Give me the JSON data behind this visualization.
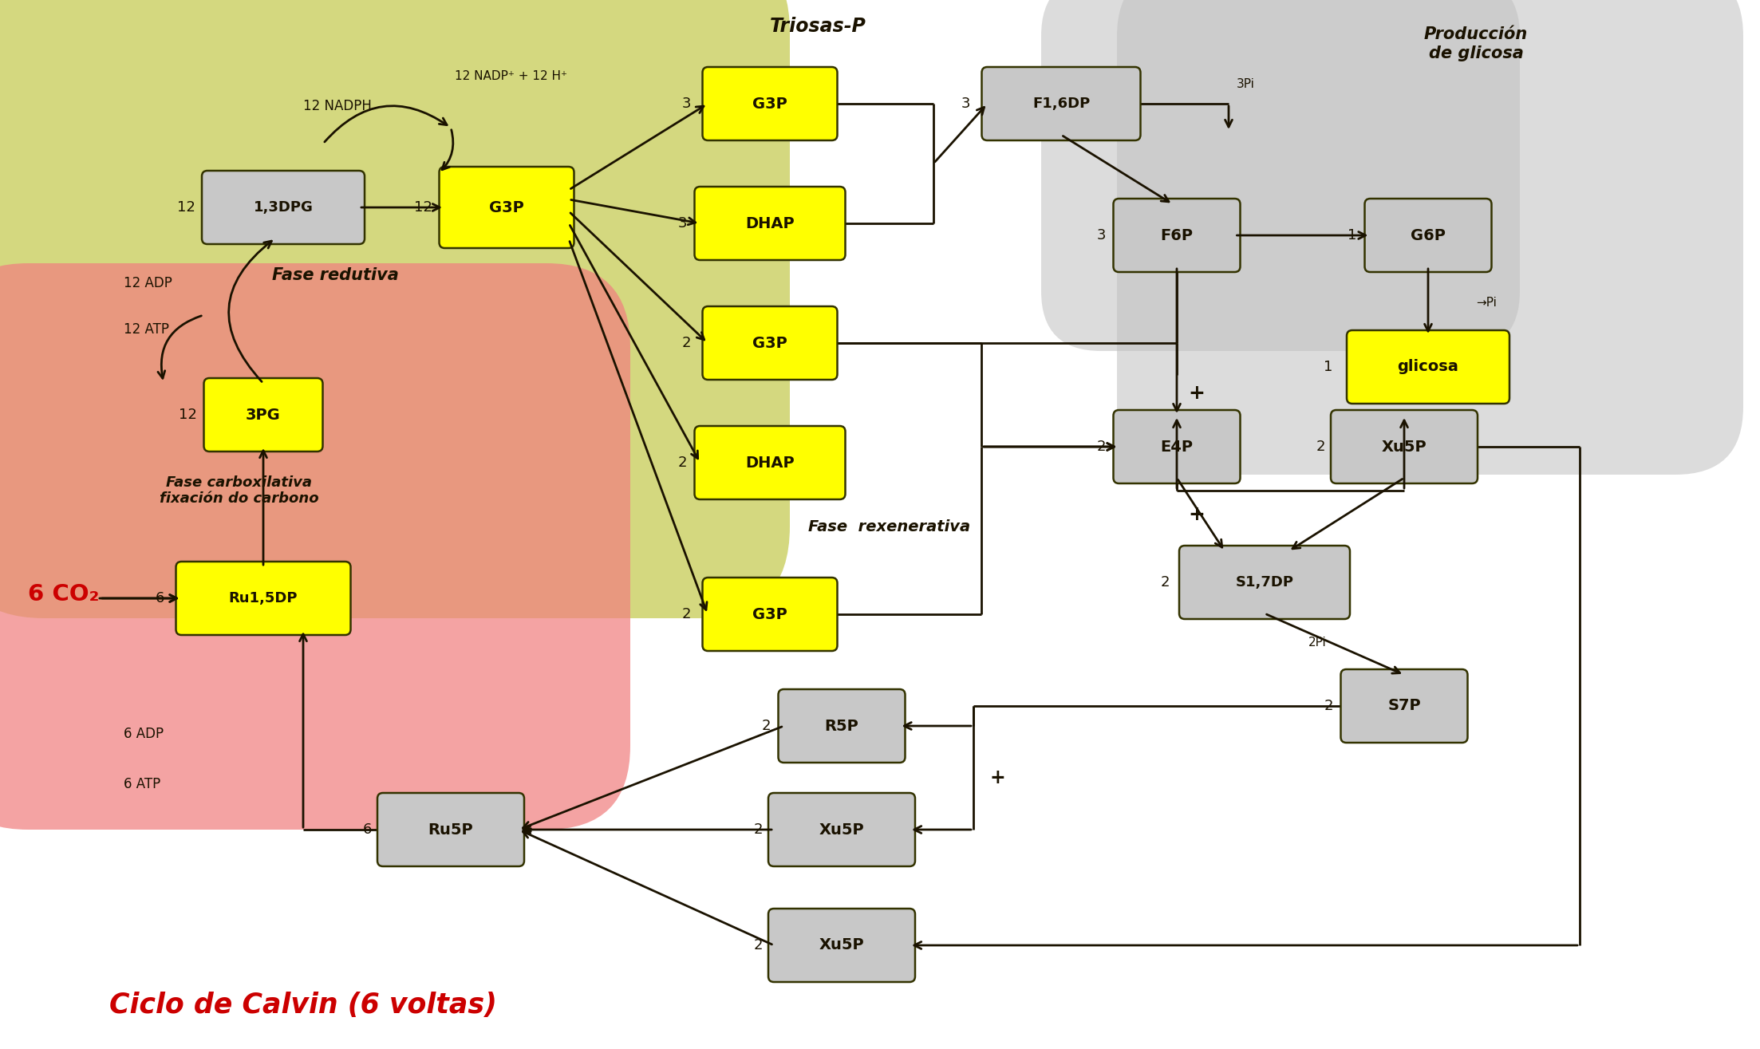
{
  "fig_width": 22.06,
  "fig_height": 13.15,
  "yellow": "#ffff00",
  "gray_box": "#c8c8c8",
  "dark": "#1a1200",
  "red_text": "#cc0000",
  "boxes": {
    "DPG": [
      3.55,
      10.55,
      1.9,
      0.78,
      "gray",
      "1,3DPG"
    ],
    "G3Pm": [
      6.35,
      10.55,
      1.55,
      0.88,
      "yellow",
      "G3P"
    ],
    "PG3": [
      3.3,
      7.95,
      1.35,
      0.78,
      "yellow",
      "3PG"
    ],
    "Ru15": [
      3.3,
      5.65,
      2.05,
      0.78,
      "yellow",
      "Ru1,5DP"
    ],
    "G3Pa": [
      9.65,
      11.85,
      1.55,
      0.78,
      "yellow",
      "G3P"
    ],
    "DHAPa": [
      9.65,
      10.35,
      1.75,
      0.78,
      "yellow",
      "DHAP"
    ],
    "G3Pb": [
      9.65,
      8.85,
      1.55,
      0.78,
      "yellow",
      "G3P"
    ],
    "DHAPb": [
      9.65,
      7.35,
      1.75,
      0.78,
      "yellow",
      "DHAP"
    ],
    "G3Pc": [
      9.65,
      5.45,
      1.55,
      0.78,
      "yellow",
      "G3P"
    ],
    "F16DP": [
      13.3,
      11.85,
      1.85,
      0.78,
      "gray",
      "F1,6DP"
    ],
    "F6P": [
      14.75,
      10.2,
      1.45,
      0.78,
      "gray",
      "F6P"
    ],
    "G6P": [
      17.9,
      10.2,
      1.45,
      0.78,
      "gray",
      "G6P"
    ],
    "glicosa": [
      17.9,
      8.55,
      1.9,
      0.78,
      "yellow",
      "glicosa"
    ],
    "E4P": [
      14.75,
      7.55,
      1.45,
      0.78,
      "gray",
      "E4P"
    ],
    "Xu5Pt": [
      17.6,
      7.55,
      1.7,
      0.78,
      "gray",
      "Xu5P"
    ],
    "S17DP": [
      15.85,
      5.85,
      2.0,
      0.78,
      "gray",
      "S1,7DP"
    ],
    "S7P": [
      17.6,
      4.3,
      1.45,
      0.78,
      "gray",
      "S7P"
    ],
    "R5P": [
      10.55,
      4.05,
      1.45,
      0.78,
      "gray",
      "R5P"
    ],
    "Xu5Pm": [
      10.55,
      2.75,
      1.7,
      0.78,
      "gray",
      "Xu5P"
    ],
    "Xu5Pb": [
      10.55,
      1.3,
      1.7,
      0.78,
      "gray",
      "Xu5P"
    ],
    "Ru5P": [
      5.65,
      2.75,
      1.7,
      0.78,
      "gray",
      "Ru5P"
    ]
  }
}
